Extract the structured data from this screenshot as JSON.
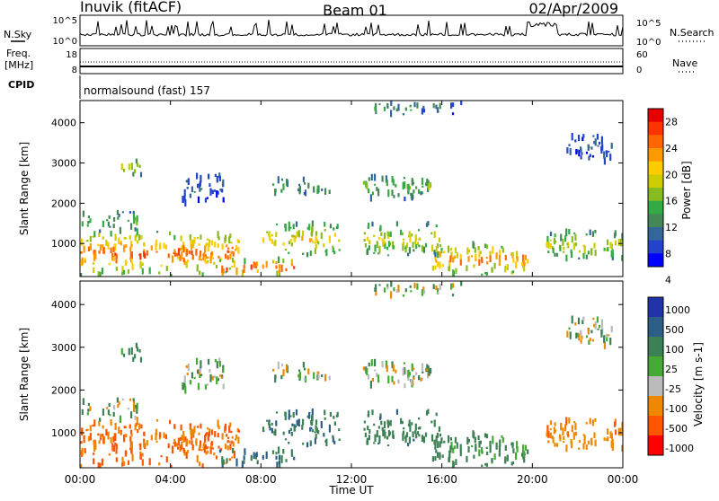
{
  "header": {
    "station": "Inuvik (fitACF)",
    "beam": "Beam 01",
    "date": "02/Apr/2009"
  },
  "noise_panel": {
    "left_label": "N.Sky",
    "left_ticks": [
      "10^5",
      "10^0"
    ],
    "right_label": "N.Search",
    "right_ticks": [
      "10^5",
      "10^0"
    ]
  },
  "freq_panel": {
    "left_label_1": "Freq.",
    "left_label_2": "[MHz]",
    "left_ticks": [
      "18",
      "8"
    ],
    "right_label": "Nave",
    "right_ticks": [
      "60",
      "0"
    ]
  },
  "cpid_panel": {
    "label": "CPID",
    "mode_text": "normalsound (fast) 157"
  },
  "power_panel": {
    "ylabel": "Slant Range [km]",
    "colorbar_title": "Power [dB]",
    "colorbar_ticks": [
      "28",
      "24",
      "20",
      "16",
      "12",
      "8",
      "4"
    ],
    "colorbar_colors": [
      "#e60000",
      "#ff3300",
      "#ff6600",
      "#ff9900",
      "#ffcc00",
      "#cccc00",
      "#88bb22",
      "#33aa44",
      "#448855",
      "#336699",
      "#2244cc",
      "#0000ff"
    ]
  },
  "velocity_panel": {
    "ylabel": "Slant Range [km]",
    "colorbar_title": "Velocity [m s-1]",
    "colorbar_ticks": [
      "1000",
      "500",
      "100",
      "25",
      "-25",
      "-100",
      "-500",
      "-1000"
    ],
    "colorbar_colors": [
      "#2233aa",
      "#2c5f88",
      "#3c8055",
      "#44aa33",
      "#bbbbbb",
      "#ee8800",
      "#ff5500",
      "#ff0000"
    ]
  },
  "x_axis": {
    "label": "Time UT",
    "ticks": [
      "00:00",
      "04:00",
      "08:00",
      "12:00",
      "16:00",
      "20:00",
      "00:00"
    ]
  },
  "chart_data": {
    "type": "heatmap",
    "title": "Inuvik (fitACF)",
    "subtitle": "Beam 01",
    "xlabel": "Time UT",
    "ylabel": "Slant Range [km]",
    "xlim": [
      0,
      24
    ],
    "ylim": [
      180,
      4550
    ],
    "yticks": [
      1000,
      2000,
      3000,
      4000
    ],
    "power_range_db": [
      0,
      32
    ],
    "velocity_levels_ms": [
      1000,
      500,
      100,
      25,
      -25,
      -100,
      -500,
      -1000
    ],
    "echo_regions": [
      {
        "t_start": 0.0,
        "t_end": 7.0,
        "range_lo": 200,
        "range_hi": 1300,
        "power_db": 26,
        "velocity": -300
      },
      {
        "t_start": 0.0,
        "t_end": 2.5,
        "range_lo": 1300,
        "range_hi": 1800,
        "power_db": 14,
        "velocity": 20
      },
      {
        "t_start": 1.8,
        "t_end": 2.8,
        "range_lo": 2700,
        "range_hi": 3100,
        "power_db": 16,
        "velocity": 150
      },
      {
        "t_start": 4.5,
        "t_end": 6.5,
        "range_lo": 2000,
        "range_hi": 2700,
        "power_db": 6,
        "velocity": 20
      },
      {
        "t_start": 6.0,
        "t_end": 9.5,
        "range_lo": 200,
        "range_hi": 600,
        "power_db": 28,
        "velocity": 300
      },
      {
        "t_start": 8.0,
        "t_end": 11.5,
        "range_lo": 700,
        "range_hi": 1500,
        "power_db": 20,
        "velocity": 250
      },
      {
        "t_start": 8.5,
        "t_end": 11.0,
        "range_lo": 2200,
        "range_hi": 2600,
        "power_db": 12,
        "velocity": 10
      },
      {
        "t_start": 12.5,
        "t_end": 15.5,
        "range_lo": 2100,
        "range_hi": 2700,
        "power_db": 14,
        "velocity": 10
      },
      {
        "t_start": 12.5,
        "t_end": 16.0,
        "range_lo": 700,
        "range_hi": 1500,
        "power_db": 18,
        "velocity": 200
      },
      {
        "t_start": 13.0,
        "t_end": 17.0,
        "range_lo": 4200,
        "range_hi": 4500,
        "power_db": 10,
        "velocity": 10
      },
      {
        "t_start": 15.5,
        "t_end": 19.8,
        "range_lo": 200,
        "range_hi": 1000,
        "power_db": 24,
        "velocity": 150
      },
      {
        "t_start": 20.5,
        "t_end": 24.0,
        "range_lo": 600,
        "range_hi": 1300,
        "power_db": 18,
        "velocity": -200
      },
      {
        "t_start": 21.5,
        "t_end": 23.5,
        "range_lo": 3000,
        "range_hi": 3700,
        "power_db": 6,
        "velocity": 10
      }
    ]
  }
}
